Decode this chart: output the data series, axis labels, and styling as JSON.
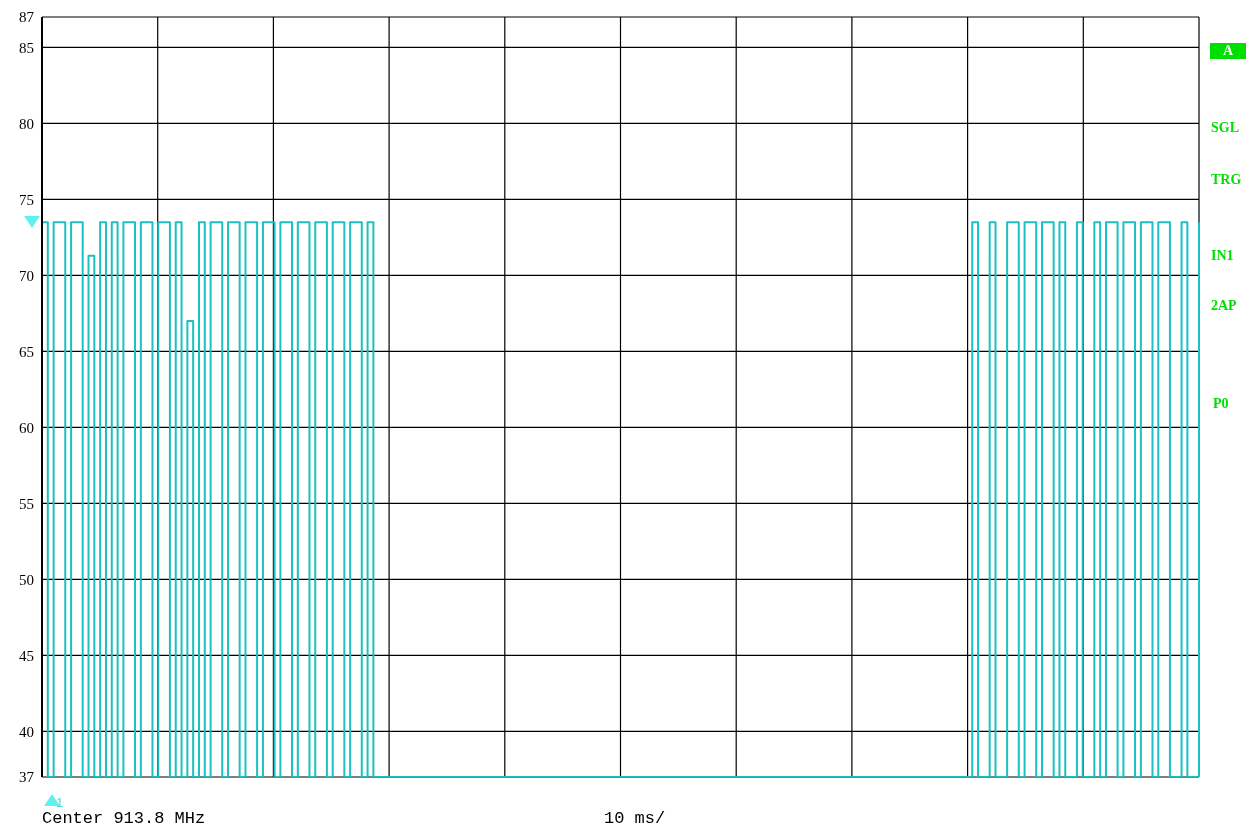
{
  "chart_data": {
    "type": "step",
    "categories": [
      null,
      null,
      null,
      null,
      null,
      null,
      null,
      null,
      null,
      null,
      null,
      null,
      null,
      null,
      null,
      null,
      null,
      null,
      null,
      null,
      null,
      null,
      null,
      null,
      null,
      null,
      null,
      null,
      null,
      null,
      null,
      null,
      null,
      null,
      null,
      null,
      null,
      null,
      null,
      null,
      null,
      null,
      null,
      null,
      null,
      null,
      null,
      null,
      null,
      null,
      null,
      null,
      null,
      null,
      null,
      null,
      null,
      null,
      null,
      null,
      null,
      null,
      null,
      null,
      null,
      null,
      null,
      null,
      null,
      null,
      null,
      null,
      null,
      null,
      null,
      null,
      null,
      null,
      null,
      null,
      null,
      null,
      null,
      null,
      null,
      null,
      null,
      null,
      null,
      null,
      null,
      null,
      null,
      null,
      null,
      null,
      null,
      null,
      null,
      null,
      null,
      null,
      null,
      null,
      null,
      null,
      null,
      null,
      null,
      null,
      null,
      null,
      null,
      null,
      null,
      null,
      null,
      null,
      null,
      null,
      null,
      null,
      null,
      null,
      null,
      null,
      null,
      null,
      null,
      null,
      null,
      null,
      null,
      null,
      null,
      null,
      null,
      null,
      null,
      null,
      null,
      null,
      null,
      null,
      null,
      null,
      null,
      null,
      null,
      null,
      null,
      null,
      null,
      null,
      null,
      null,
      null,
      null,
      null,
      null,
      null,
      null,
      null,
      null,
      null,
      null,
      null,
      null,
      null,
      null,
      null,
      null,
      null,
      null,
      null,
      null,
      null,
      null,
      null,
      null,
      null,
      null,
      null,
      null,
      null,
      null,
      null,
      null,
      null,
      null,
      null,
      null,
      null,
      null,
      null,
      null,
      null,
      null,
      null,
      null
    ],
    "series": [
      {
        "color": "#1cc0c0",
        "values": [
          73.5,
          37,
          73.5,
          73.5,
          37,
          73.5,
          73.5,
          37,
          71.3,
          37,
          73.5,
          37,
          73.5,
          37,
          73.5,
          73.5,
          37,
          73.5,
          73.5,
          37,
          73.5,
          73.5,
          37,
          73.5,
          37,
          67,
          37,
          73.5,
          37,
          73.5,
          73.5,
          37,
          73.5,
          73.5,
          37,
          73.5,
          73.5,
          37,
          73.5,
          73.5,
          37,
          73.5,
          73.5,
          37,
          73.5,
          73.5,
          37,
          73.5,
          73.5,
          37,
          73.5,
          73.5,
          37,
          73.5,
          73.5,
          37,
          73.5,
          37,
          37,
          37,
          37,
          37,
          37,
          37,
          37,
          37,
          37,
          37,
          37,
          37,
          37,
          37,
          37,
          37,
          37,
          37,
          37,
          37,
          37,
          37,
          37,
          37,
          37,
          37,
          37,
          37,
          37,
          37,
          37,
          37,
          37,
          37,
          37,
          37,
          37,
          37,
          37,
          37,
          37,
          37,
          37,
          37,
          37,
          37,
          37,
          37,
          37,
          37,
          37,
          37,
          37,
          37,
          37,
          37,
          37,
          37,
          37,
          37,
          37,
          37,
          37,
          37,
          37,
          37,
          37,
          37,
          37,
          37,
          37,
          37,
          37,
          37,
          37,
          37,
          37,
          37,
          37,
          37,
          37,
          37,
          37,
          37,
          37,
          37,
          37,
          37,
          37,
          37,
          37,
          37,
          37,
          37,
          37,
          37,
          37,
          37,
          37,
          37,
          37,
          37,
          73.5,
          37,
          37,
          73.5,
          37,
          37,
          73.5,
          73.5,
          37,
          73.5,
          73.5,
          37,
          73.5,
          73.5,
          37,
          73.5,
          37,
          37,
          73.5,
          37,
          37,
          73.5,
          37,
          73.5,
          73.5,
          37,
          73.5,
          73.5,
          37,
          73.5,
          73.5,
          37,
          73.5,
          73.5,
          37,
          37,
          73.5,
          37,
          37,
          73.5
        ]
      }
    ],
    "ylim": [
      37,
      87
    ],
    "yticks": [
      37,
      40,
      45,
      50,
      55,
      60,
      65,
      70,
      75,
      80,
      85,
      87
    ],
    "tick_labels": "y",
    "grid": true,
    "marker": "none",
    "line_style": "solid",
    "annotations": [
      "Center 913.8 MHz",
      "10 ms/",
      "A",
      "SGL",
      "TRG",
      "IN1",
      "2AP",
      "P0",
      "1"
    ]
  }
}
